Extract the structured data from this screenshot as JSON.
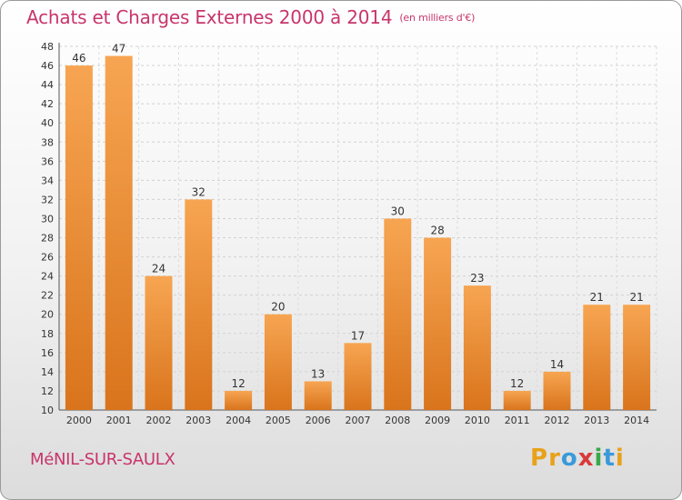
{
  "chart_data": {
    "type": "bar",
    "title": "Achats et Charges Externes 2000 à 2014",
    "subtitle": "(en milliers d'€)",
    "categories": [
      "2000",
      "2001",
      "2002",
      "2003",
      "2004",
      "2005",
      "2006",
      "2007",
      "2008",
      "2009",
      "2010",
      "2011",
      "2012",
      "2013",
      "2014"
    ],
    "values": [
      46,
      47,
      24,
      32,
      12,
      20,
      13,
      17,
      30,
      28,
      23,
      12,
      14,
      21,
      21
    ],
    "ylim": [
      10,
      48
    ],
    "yticks": [
      10,
      12,
      14,
      16,
      18,
      20,
      22,
      24,
      26,
      28,
      30,
      32,
      34,
      36,
      38,
      40,
      42,
      44,
      46,
      48
    ],
    "grid": true,
    "bar_color": "#f0922f"
  },
  "footer": {
    "commune": "MéNIL-SUR-SAULX",
    "logo_letters": [
      "P",
      "r",
      "o",
      "x",
      "i",
      "t",
      "i"
    ],
    "logo_colors": [
      "#e8a21a",
      "#e8a21a",
      "#3a9ad9",
      "#d83a3a",
      "#3aa84a",
      "#3a9ad9",
      "#e8a21a"
    ]
  }
}
